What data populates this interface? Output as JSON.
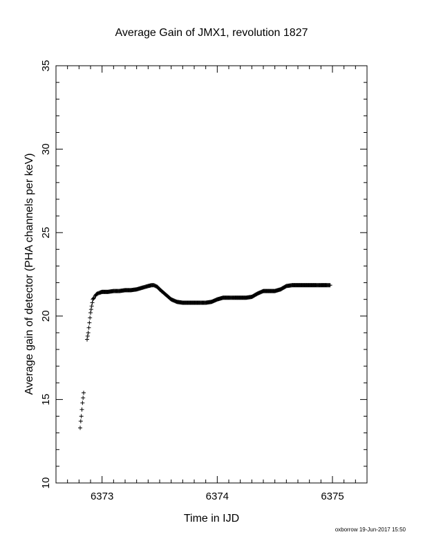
{
  "footer": {
    "stamp": "oxborrow 19-Jun-2017 15:50"
  },
  "chart_data": {
    "type": "scatter",
    "marker": "plus",
    "title": "Average Gain of JMX1, revolution 1827",
    "xlabel": "Time in IJD",
    "ylabel": "Average gain of detector (PHA channels per keV)",
    "xlim": [
      6372.6,
      6375.3
    ],
    "ylim": [
      10,
      35
    ],
    "xticks": [
      6373,
      6374,
      6375
    ],
    "yticks": [
      10,
      15,
      20,
      25,
      30,
      35
    ],
    "grid": false,
    "colors": {
      "marker": "#000000",
      "axes": "#000000",
      "background": "#ffffff"
    },
    "series": [
      {
        "x": [
          6372.81,
          6372.815,
          6372.82,
          6372.825,
          6372.83,
          6372.835,
          6372.84,
          6372.87,
          6372.875,
          6372.88,
          6372.885,
          6372.89,
          6372.895,
          6372.9,
          6372.905,
          6372.91,
          6372.915,
          6372.92,
          6372.93,
          6372.94,
          6372.95,
          6372.96,
          6372.98,
          6373.0,
          6373.05,
          6373.1,
          6373.15,
          6373.2,
          6373.25,
          6373.3,
          6373.35,
          6373.4,
          6373.43,
          6373.45,
          6373.48,
          6373.5,
          6373.55,
          6373.6,
          6373.65,
          6373.7,
          6373.75,
          6373.8,
          6373.85,
          6373.9,
          6373.95,
          6374.0,
          6374.05,
          6374.1,
          6374.15,
          6374.2,
          6374.25,
          6374.3,
          6374.35,
          6374.4,
          6374.45,
          6374.5,
          6374.55,
          6374.6,
          6374.65,
          6374.7,
          6374.75,
          6374.8,
          6374.85,
          6374.9,
          6374.95,
          6374.98
        ],
        "y": [
          13.3,
          13.7,
          14.0,
          14.4,
          14.8,
          15.1,
          15.4,
          18.6,
          18.8,
          19.0,
          19.3,
          19.6,
          19.9,
          20.2,
          20.4,
          20.6,
          20.8,
          21.0,
          21.1,
          21.2,
          21.3,
          21.35,
          21.4,
          21.45,
          21.45,
          21.5,
          21.5,
          21.55,
          21.55,
          21.6,
          21.7,
          21.8,
          21.85,
          21.85,
          21.75,
          21.6,
          21.3,
          21.0,
          20.85,
          20.8,
          20.8,
          20.8,
          20.8,
          20.8,
          20.85,
          21.0,
          21.1,
          21.1,
          21.1,
          21.1,
          21.1,
          21.15,
          21.35,
          21.5,
          21.5,
          21.5,
          21.6,
          21.8,
          21.85,
          21.85,
          21.85,
          21.85,
          21.85,
          21.85,
          21.85,
          21.85
        ]
      }
    ]
  }
}
